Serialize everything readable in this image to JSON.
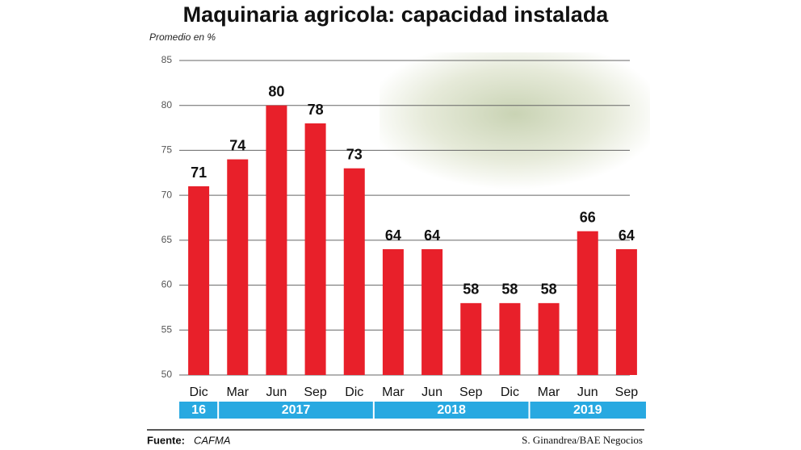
{
  "chart_data": {
    "type": "bar",
    "title": "Maquinaria agricola: capacidad instalada",
    "subtitle": "Promedio en %",
    "categories": [
      "Dic",
      "Mar",
      "Jun",
      "Sep",
      "Dic",
      "Mar",
      "Jun",
      "Sep",
      "Dic",
      "Mar",
      "Jun",
      "Sep"
    ],
    "values": [
      71,
      74,
      80,
      78,
      73,
      64,
      64,
      58,
      58,
      58,
      66,
      64
    ],
    "color": "#e8202a",
    "groups": [
      {
        "label": "16",
        "span": 1
      },
      {
        "label": "2017",
        "span": 4
      },
      {
        "label": "2018",
        "span": 4
      },
      {
        "label": "2019",
        "span": 3
      }
    ],
    "group_color": "#28a9e1",
    "ylim": [
      50,
      85
    ],
    "yticks": [
      50,
      55,
      60,
      65,
      70,
      75,
      80,
      85
    ],
    "grid": true,
    "source_label": "Fuente:",
    "source": "CAFMA",
    "credit": "S. Ginandrea/BAE Negocios"
  }
}
